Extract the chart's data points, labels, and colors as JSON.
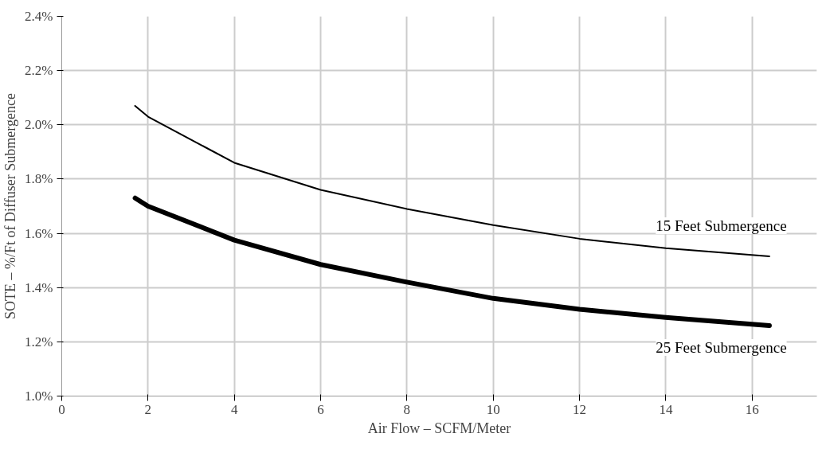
{
  "chart_data": {
    "type": "line",
    "xlabel": "Air Flow – SCFM/Meter",
    "ylabel": "SOTE – %/Ft of Diffuser Submergence",
    "xlim": [
      0,
      17.5
    ],
    "xticks": [
      0,
      2,
      4,
      6,
      8,
      10,
      12,
      14,
      16
    ],
    "ylim": [
      1.0,
      2.4
    ],
    "yticks": [
      {
        "value": 1.0,
        "label": "1.0%"
      },
      {
        "value": 1.2,
        "label": "1.2%"
      },
      {
        "value": 1.4,
        "label": "1.4%"
      },
      {
        "value": 1.6,
        "label": "1.6%"
      },
      {
        "value": 1.8,
        "label": "1.8%"
      },
      {
        "value": 2.0,
        "label": "2.0%"
      },
      {
        "value": 2.2,
        "label": "2.2%"
      },
      {
        "value": 2.4,
        "label": "2.4%"
      }
    ],
    "grid": true,
    "marker": "none",
    "line_style": "solid",
    "x": [
      1.7,
      2,
      4,
      6,
      8,
      10,
      12,
      14,
      16.4
    ],
    "series": [
      {
        "name": "15 Feet Submergence",
        "color": "#000000",
        "values": [
          2.07,
          2.03,
          1.86,
          1.76,
          1.69,
          1.63,
          1.58,
          1.545,
          1.515
        ]
      },
      {
        "name": "25 Feet Submergence",
        "color": "#000000",
        "values": [
          1.73,
          1.7,
          1.575,
          1.485,
          1.42,
          1.36,
          1.32,
          1.29,
          1.26
        ]
      }
    ]
  }
}
